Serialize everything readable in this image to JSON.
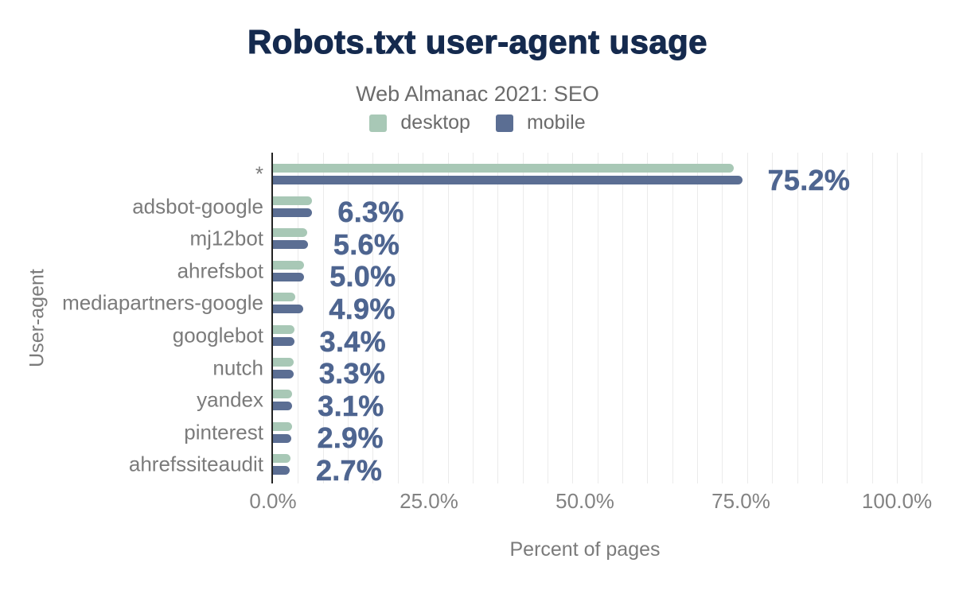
{
  "title": "Robots.txt user-agent usage",
  "subtitle": "Web Almanac 2021: SEO",
  "legend": [
    {
      "label": "desktop",
      "color": "#a8c8b6"
    },
    {
      "label": "mobile",
      "color": "#5b6e93"
    }
  ],
  "colors": {
    "desktop_bar": "#a8c8b6",
    "mobile_bar": "#5b6e93",
    "value_label": "#4e6590",
    "title_text": "#152a4e",
    "axis_text": "#7b7b7b",
    "gridline": "#ebebeb"
  },
  "chart_data": {
    "type": "bar",
    "orientation": "horizontal",
    "title": "Robots.txt user-agent usage",
    "subtitle": "Web Almanac 2021: SEO",
    "xlabel": "Percent of pages",
    "ylabel": "User-agent",
    "xlim": [
      0,
      104
    ],
    "grid": "minor vertical gridlines every 4%",
    "legend_position": "top",
    "categories": [
      "*",
      "adsbot-google",
      "mj12bot",
      "ahrefsbot",
      "mediapartners-google",
      "googlebot",
      "nutch",
      "yandex",
      "pinterest",
      "ahrefssiteaudit"
    ],
    "series": [
      {
        "name": "desktop",
        "color": "#a8c8b6",
        "values": [
          73.9,
          6.2,
          5.5,
          5.0,
          3.6,
          3.4,
          3.3,
          3.1,
          3.0,
          2.8
        ]
      },
      {
        "name": "mobile",
        "color": "#5b6e93",
        "values": [
          75.2,
          6.3,
          5.6,
          5.0,
          4.9,
          3.4,
          3.3,
          3.1,
          2.9,
          2.7
        ]
      }
    ],
    "value_labels": [
      "75.2%",
      "6.3%",
      "5.6%",
      "5.0%",
      "4.9%",
      "3.4%",
      "3.3%",
      "3.1%",
      "2.9%",
      "2.7%"
    ],
    "x_ticks": [
      {
        "value": 0,
        "label": "0.0%"
      },
      {
        "value": 25,
        "label": "25.0%"
      },
      {
        "value": 50,
        "label": "50.0%"
      },
      {
        "value": 75,
        "label": "75.0%"
      },
      {
        "value": 100,
        "label": "100.0%"
      }
    ]
  }
}
